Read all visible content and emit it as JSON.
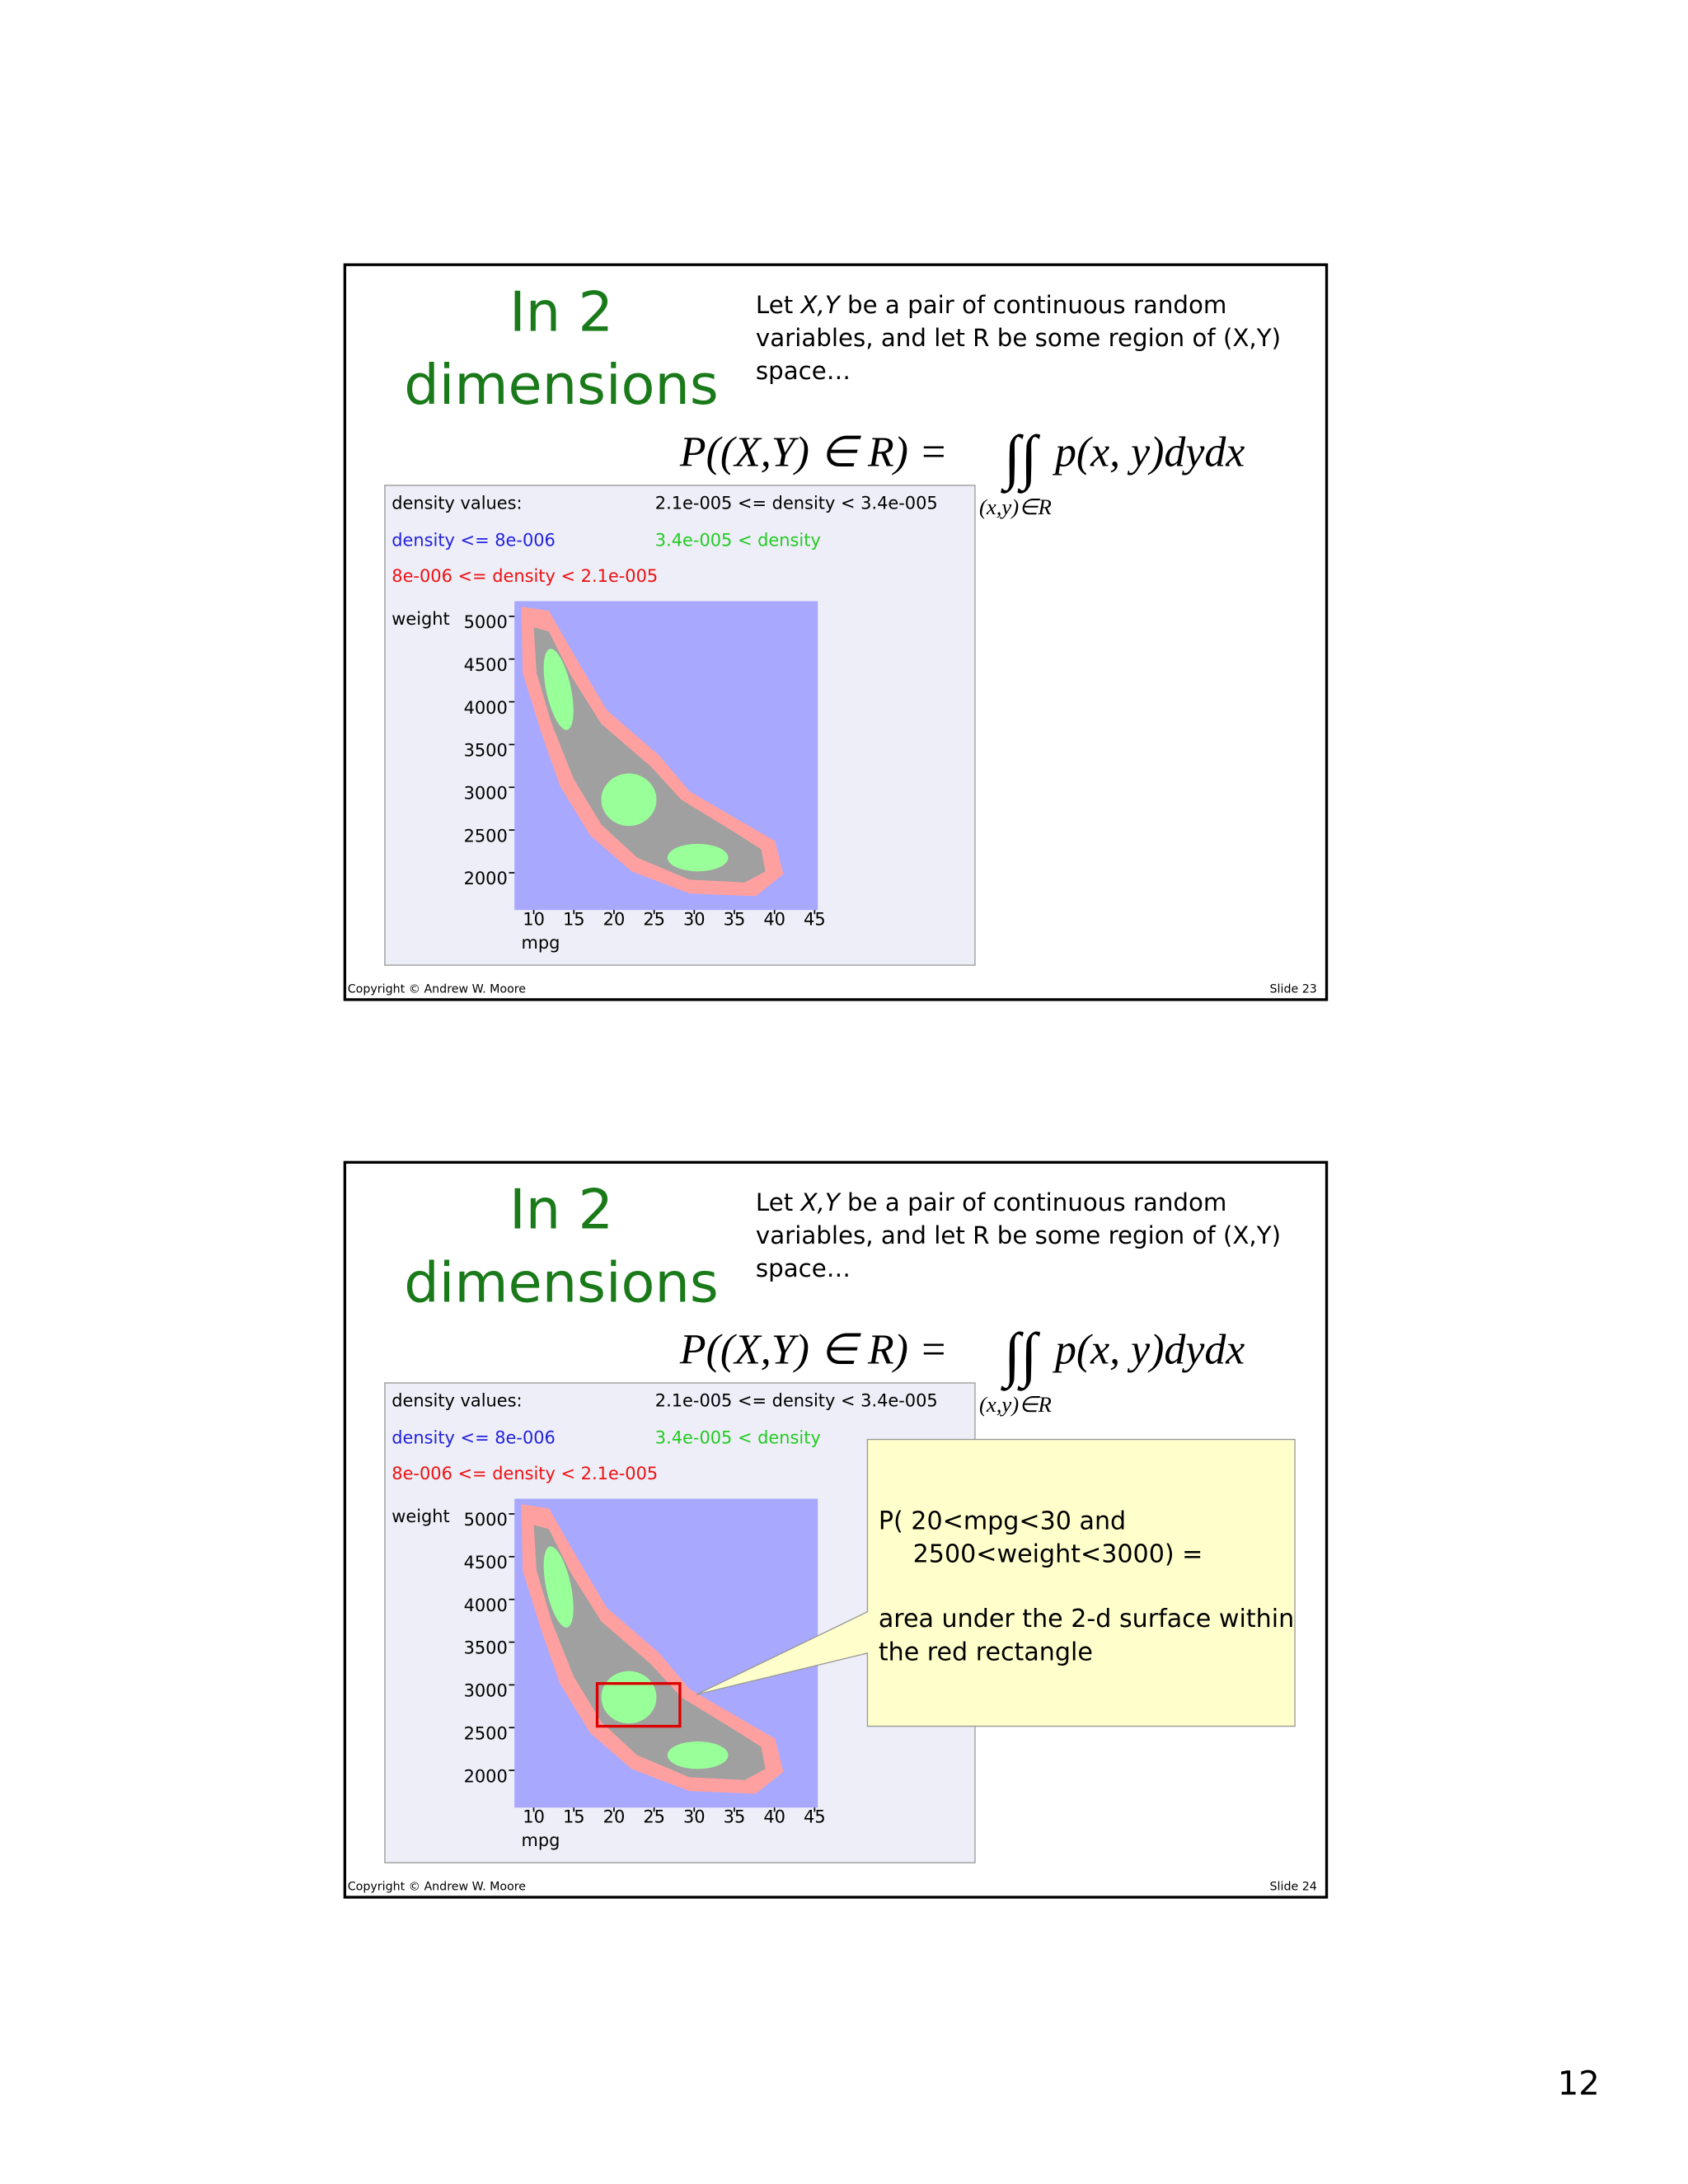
{
  "slides": [
    {
      "title": [
        "In 2",
        "dimensions"
      ],
      "text": [
        [
          "Let ",
          "X,Y",
          " be a pair of continuous random"
        ],
        [
          "variables, and let R be some region of (X,Y)"
        ],
        [
          "space…"
        ]
      ],
      "formula": {
        "left": "P((X,Y) ∈ R) =",
        "integral": "∫∫",
        "integrand": "p(x, y)dydx",
        "region": "(x,y)∈R"
      },
      "plot": {
        "legend": {
          "heading": "density values:",
          "mid": "2.1e-005 <= density < 3.4e-005",
          "low": "density <= 8e-006",
          "high": "3.4e-005 < density",
          "lowmid": "8e-006 <= density < 2.1e-005"
        },
        "y_label": "weight",
        "yticks": [
          5000,
          4500,
          4000,
          3500,
          3000,
          2500,
          2000
        ],
        "x_label": "mpg",
        "xticks": [
          10,
          15,
          20,
          25,
          30,
          35,
          40,
          45
        ]
      },
      "footer": {
        "copyright": "Copyright © Andrew W. Moore",
        "slide": "Slide 23"
      }
    },
    {
      "title": [
        "In 2",
        "dimensions"
      ],
      "text": [
        [
          "Let ",
          "X,Y",
          " be a pair of continuous random"
        ],
        [
          "variables, and let R be some region of (X,Y)"
        ],
        [
          "space…"
        ]
      ],
      "formula": {
        "left": "P((X,Y) ∈ R) =",
        "integral": "∫∫",
        "integrand": "p(x, y)dydx",
        "region": "(x,y)∈R"
      },
      "plot": {
        "legend": {
          "heading": "density values:",
          "mid": "2.1e-005 <= density < 3.4e-005",
          "low": "density <= 8e-006",
          "high": "3.4e-005 < density",
          "lowmid": "8e-006 <= density < 2.1e-005"
        },
        "y_label": "weight",
        "yticks": [
          5000,
          4500,
          4000,
          3500,
          3000,
          2500,
          2000
        ],
        "x_label": "mpg",
        "xticks": [
          10,
          15,
          20,
          25,
          30,
          35,
          40,
          45
        ]
      },
      "callout": [
        "P( 20<mpg<30 and",
        "2500<weight<3000)  =",
        "area under the 2-d surface within",
        "the red rectangle"
      ],
      "footer": {
        "copyright": "Copyright © Andrew W. Moore",
        "slide": "Slide 24"
      }
    }
  ],
  "page_number": "12"
}
